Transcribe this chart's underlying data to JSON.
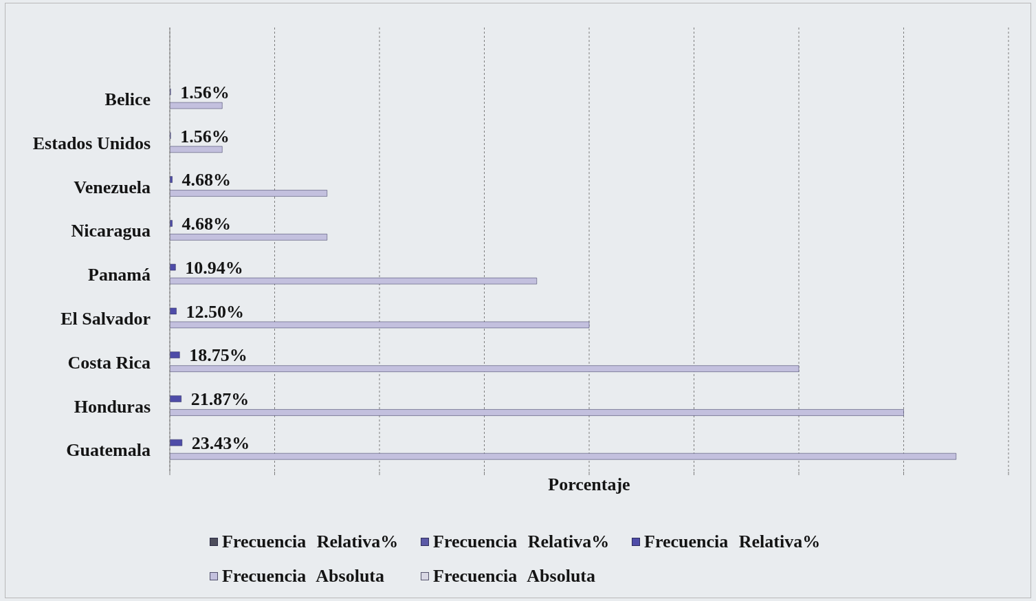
{
  "chart_data": {
    "type": "bar",
    "orientation": "horizontal",
    "xlabel": "Porcentaje",
    "categories": [
      "Belice",
      "Estados Unidos",
      "Venezuela",
      "Nicaragua",
      "Panamá",
      "El Salvador",
      "Costa Rica",
      "Honduras",
      "Guatemala"
    ],
    "series": [
      {
        "name": "Frecuencia Relativa%",
        "color": "#4d4d5c",
        "values": [
          null,
          null,
          null,
          null,
          null,
          null,
          null,
          null,
          null
        ]
      },
      {
        "name": "Frecuencia Relativa%",
        "color": "#5b59a6",
        "values": [
          null,
          null,
          null,
          null,
          null,
          null,
          null,
          null,
          null
        ]
      },
      {
        "name": "Frecuencia Relativa%",
        "color": "#4e4ca8",
        "values": [
          1.56,
          1.56,
          4.68,
          4.68,
          10.94,
          12.5,
          18.75,
          21.87,
          23.43
        ],
        "value_labels": [
          "1.56%",
          "1.56%",
          "4.68%",
          "4.68%",
          "10.94%",
          "12.50%",
          "18.75%",
          "21.87%",
          "23.43%"
        ]
      },
      {
        "name": "Frecuencia Absoluta",
        "color": "#c3c0de",
        "values": [
          100,
          100,
          300,
          300,
          700,
          800,
          1200,
          1400,
          1500
        ]
      },
      {
        "name": "Frecuencia Absoluta",
        "color": "#d9d8e4",
        "values": [
          null,
          null,
          null,
          null,
          null,
          null,
          null,
          null,
          null
        ]
      }
    ],
    "xlim": [
      0,
      1600
    ],
    "tick_labels": "y",
    "grid": "x",
    "legend": "bottom"
  }
}
